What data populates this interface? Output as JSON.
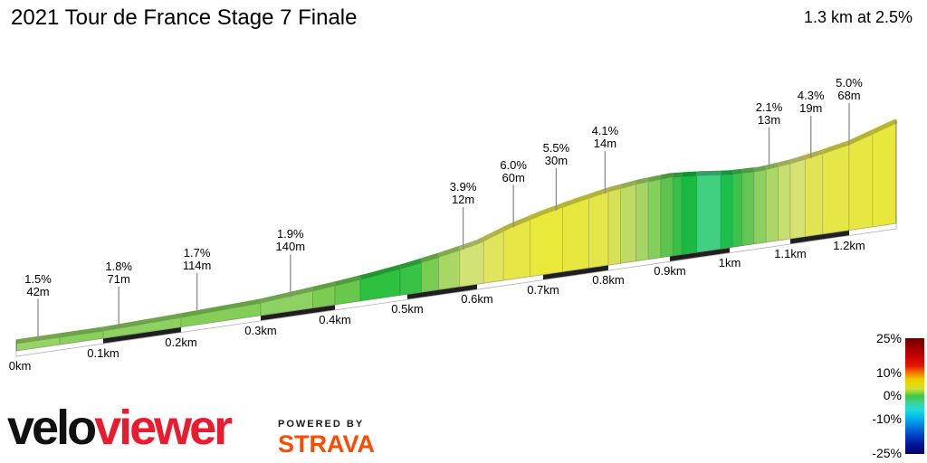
{
  "header": {
    "title": "2021 Tour de France Stage 7 Finale",
    "summary": "1.3 km at 2.5%"
  },
  "branding": {
    "logo_black": "velo",
    "logo_red": "viewer",
    "powered_by": "POWERED BY",
    "strava": "STRAVA"
  },
  "colors": {
    "callout_line": "#8c8c8c",
    "road_strip": "#ffffff",
    "road_dash": "#1f1f1f",
    "strip_border": "#b0b0b0",
    "text": "#000000",
    "logo_red": "#e81c2e",
    "strava_orange": "#fc4c02",
    "band_darken_factor": 0.78
  },
  "chart_data": {
    "type": "area",
    "title": "2021 Tour de France Stage 7 Finale",
    "total": {
      "distance_km": 1.3,
      "avg_gradient_pct": 2.5,
      "label": "1.3 km at 2.5%"
    },
    "x_unit": "km",
    "grid": false,
    "x_ticks": [
      {
        "km": 0.0,
        "label": "0km"
      },
      {
        "km": 0.1,
        "label": "0.1km"
      },
      {
        "km": 0.2,
        "label": "0.2km"
      },
      {
        "km": 0.3,
        "label": "0.3km"
      },
      {
        "km": 0.4,
        "label": "0.4km"
      },
      {
        "km": 0.5,
        "label": "0.5km"
      },
      {
        "km": 0.6,
        "label": "0.6km"
      },
      {
        "km": 0.7,
        "label": "0.7km"
      },
      {
        "km": 0.8,
        "label": "0.8km"
      },
      {
        "km": 0.9,
        "label": "0.9km"
      },
      {
        "km": 1.0,
        "label": "1km"
      },
      {
        "km": 1.1,
        "label": "1.1km"
      },
      {
        "km": 1.2,
        "label": "1.2km"
      }
    ],
    "annotations": [
      {
        "km": 0.025,
        "gradient": "1.5%",
        "height": "42m"
      },
      {
        "km": 0.12,
        "gradient": "1.8%",
        "height": "71m"
      },
      {
        "km": 0.22,
        "gradient": "1.7%",
        "height": "114m"
      },
      {
        "km": 0.34,
        "gradient": "1.9%",
        "height": "140m"
      },
      {
        "km": 0.58,
        "gradient": "3.9%",
        "height": "12m"
      },
      {
        "km": 0.655,
        "gradient": "6.0%",
        "height": "60m"
      },
      {
        "km": 0.72,
        "gradient": "5.5%",
        "height": "30m"
      },
      {
        "km": 0.795,
        "gradient": "4.1%",
        "height": "14m"
      },
      {
        "km": 1.065,
        "gradient": "2.1%",
        "height": "13m"
      },
      {
        "km": 1.135,
        "gradient": "4.3%",
        "height": "19m"
      },
      {
        "km": 1.2,
        "gradient": "5.0%",
        "height": "68m"
      }
    ],
    "profile_top": [
      [
        0,
        380
      ],
      [
        0.1,
        366
      ],
      [
        0.2,
        351
      ],
      [
        0.3,
        335
      ],
      [
        0.4,
        316
      ],
      [
        0.45,
        306
      ],
      [
        0.5,
        295
      ],
      [
        0.55,
        283
      ],
      [
        0.6,
        270
      ],
      [
        0.65,
        252
      ],
      [
        0.7,
        237
      ],
      [
        0.75,
        224
      ],
      [
        0.8,
        212
      ],
      [
        0.85,
        203
      ],
      [
        0.9,
        196
      ],
      [
        0.95,
        194
      ],
      [
        1.0,
        193
      ],
      [
        1.05,
        189
      ],
      [
        1.1,
        181
      ],
      [
        1.15,
        171
      ],
      [
        1.2,
        160
      ],
      [
        1.25,
        148
      ],
      [
        1.3,
        136
      ]
    ],
    "km_to_x": [
      [
        0,
        18
      ],
      [
        0.1,
        114
      ],
      [
        0.2,
        200
      ],
      [
        0.3,
        288
      ],
      [
        0.4,
        370
      ],
      [
        0.5,
        450
      ],
      [
        0.6,
        527
      ],
      [
        0.7,
        600
      ],
      [
        0.8,
        672
      ],
      [
        0.9,
        740
      ],
      [
        1.0,
        806
      ],
      [
        1.1,
        873
      ],
      [
        1.2,
        938
      ],
      [
        1.3,
        990
      ]
    ],
    "baseline": {
      "x0": 18,
      "y0": 388,
      "x1": 990,
      "y1": 247,
      "strip_height": 6
    },
    "road_dashes": [
      [
        0.1,
        0.2
      ],
      [
        0.3,
        0.4
      ],
      [
        0.5,
        0.6
      ],
      [
        0.7,
        0.8
      ],
      [
        0.9,
        1.0
      ],
      [
        1.1,
        1.2
      ]
    ],
    "slices": [
      {
        "from": 0.0,
        "to": 0.05,
        "color": "#97d466"
      },
      {
        "from": 0.05,
        "to": 0.1,
        "color": "#8ad05c"
      },
      {
        "from": 0.1,
        "to": 0.2,
        "color": "#8dd160"
      },
      {
        "from": 0.2,
        "to": 0.3,
        "color": "#84ce58"
      },
      {
        "from": 0.3,
        "to": 0.37,
        "color": "#8dd262"
      },
      {
        "from": 0.37,
        "to": 0.4,
        "color": "#7ccb53"
      },
      {
        "from": 0.4,
        "to": 0.435,
        "color": "#68c74d"
      },
      {
        "from": 0.435,
        "to": 0.49,
        "color": "#2ec13f"
      },
      {
        "from": 0.49,
        "to": 0.52,
        "color": "#38c347"
      },
      {
        "from": 0.52,
        "to": 0.545,
        "color": "#79cc52"
      },
      {
        "from": 0.545,
        "to": 0.575,
        "color": "#a9d765"
      },
      {
        "from": 0.575,
        "to": 0.61,
        "color": "#d3e275"
      },
      {
        "from": 0.61,
        "to": 0.64,
        "color": "#e0e55c"
      },
      {
        "from": 0.64,
        "to": 0.68,
        "color": "#e6e747"
      },
      {
        "from": 0.68,
        "to": 0.73,
        "color": "#e9e93c"
      },
      {
        "from": 0.73,
        "to": 0.77,
        "color": "#e6e73f"
      },
      {
        "from": 0.77,
        "to": 0.8,
        "color": "#e3e54a"
      },
      {
        "from": 0.8,
        "to": 0.82,
        "color": "#d7e158"
      },
      {
        "from": 0.82,
        "to": 0.845,
        "color": "#c0db64"
      },
      {
        "from": 0.845,
        "to": 0.865,
        "color": "#a5d566"
      },
      {
        "from": 0.865,
        "to": 0.885,
        "color": "#85cf5d"
      },
      {
        "from": 0.885,
        "to": 0.905,
        "color": "#5ec44f"
      },
      {
        "from": 0.905,
        "to": 0.92,
        "color": "#38bf4a"
      },
      {
        "from": 0.92,
        "to": 0.945,
        "color": "#19b942"
      },
      {
        "from": 0.945,
        "to": 0.985,
        "color": "#40d080"
      },
      {
        "from": 0.985,
        "to": 1.005,
        "color": "#1cbf4e"
      },
      {
        "from": 1.005,
        "to": 1.02,
        "color": "#3ec14d"
      },
      {
        "from": 1.02,
        "to": 1.04,
        "color": "#63c654"
      },
      {
        "from": 1.04,
        "to": 1.06,
        "color": "#8ad05f"
      },
      {
        "from": 1.06,
        "to": 1.08,
        "color": "#abd769"
      },
      {
        "from": 1.08,
        "to": 1.1,
        "color": "#c9de70"
      },
      {
        "from": 1.1,
        "to": 1.125,
        "color": "#d8e272"
      },
      {
        "from": 1.125,
        "to": 1.155,
        "color": "#e0e455"
      },
      {
        "from": 1.155,
        "to": 1.2,
        "color": "#e5e648"
      },
      {
        "from": 1.2,
        "to": 1.25,
        "color": "#e7e741"
      },
      {
        "from": 1.25,
        "to": 1.3,
        "color": "#e8e83c"
      }
    ],
    "legend": {
      "position": "bottom-right",
      "ticks": [
        {
          "label": "25%",
          "t": 0.0
        },
        {
          "label": "10%",
          "t": 0.3
        },
        {
          "label": "0%",
          "t": 0.49
        },
        {
          "label": "-10%",
          "t": 0.695
        },
        {
          "label": "-25%",
          "t": 0.99
        }
      ],
      "gradient_stops": [
        {
          "c": "#6b0000",
          "p": 0
        },
        {
          "c": "#9c0000",
          "p": 8
        },
        {
          "c": "#c80000",
          "p": 16
        },
        {
          "c": "#e81800",
          "p": 24
        },
        {
          "c": "#f07800",
          "p": 30
        },
        {
          "c": "#eec300",
          "p": 35
        },
        {
          "c": "#e6dc00",
          "p": 39
        },
        {
          "c": "#ccdf3a",
          "p": 44
        },
        {
          "c": "#3cc83c",
          "p": 50
        },
        {
          "c": "#3cd2a0",
          "p": 56
        },
        {
          "c": "#20dcdc",
          "p": 62
        },
        {
          "c": "#00b4ec",
          "p": 69
        },
        {
          "c": "#0076dc",
          "p": 77
        },
        {
          "c": "#0040c8",
          "p": 84
        },
        {
          "c": "#001694",
          "p": 92
        },
        {
          "c": "#000070",
          "p": 100
        }
      ]
    }
  }
}
